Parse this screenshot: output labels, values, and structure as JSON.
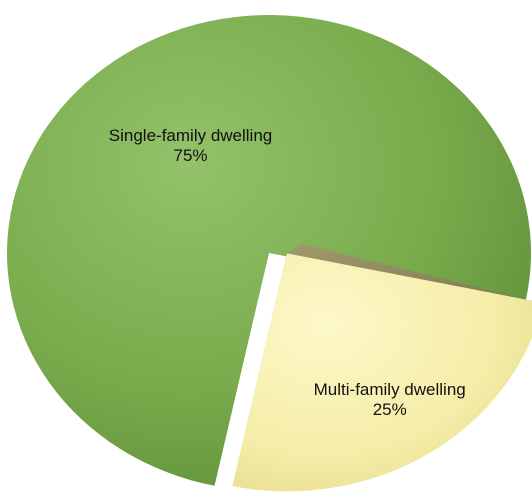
{
  "chart_data": {
    "type": "pie",
    "title": "",
    "categories": [
      "Single-family dwelling",
      "Multi-family dwelling"
    ],
    "values": [
      75,
      25
    ],
    "value_labels": [
      "75%",
      "25%"
    ],
    "exploded": [
      false,
      true
    ],
    "style": "3d",
    "legend": "none",
    "colors": {
      "Single-family dwelling": "#7aad4e",
      "Multi-family dwelling": "#f7f0ad"
    }
  }
}
